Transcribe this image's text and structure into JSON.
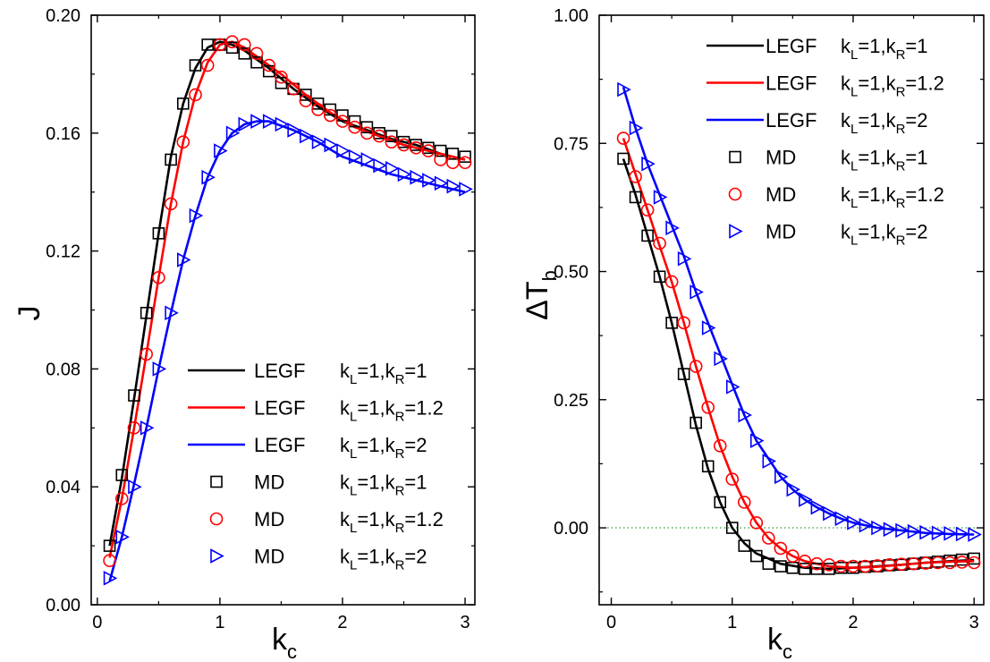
{
  "chart_data": [
    {
      "type": "line",
      "panel": "left",
      "xlabel": "k",
      "xlabel_sub": "c",
      "ylabel": "J",
      "xlim": [
        -0.05,
        3.08
      ],
      "ylim": [
        0.0,
        0.2
      ],
      "xticks": [
        "0",
        "1",
        "2",
        "3"
      ],
      "yticks": [
        "0.00",
        "0.04",
        "0.08",
        "0.12",
        "0.16",
        "0.20"
      ],
      "grid": false,
      "legend_position": "bottom-right",
      "series": [
        {
          "name": "LEGF k_L=1,k_R=1",
          "legend": {
            "method": "LEGF",
            "a": "1",
            "b": "1"
          },
          "style": "line",
          "color": "#000000",
          "x": [
            0.1,
            0.2,
            0.3,
            0.4,
            0.5,
            0.6,
            0.7,
            0.8,
            0.9,
            1.0,
            1.1,
            1.2,
            1.4,
            1.6,
            1.8,
            2.0,
            2.2,
            2.4,
            2.6,
            2.8,
            3.0
          ],
          "y": [
            0.02,
            0.043,
            0.07,
            0.098,
            0.126,
            0.152,
            0.17,
            0.182,
            0.189,
            0.191,
            0.19,
            0.188,
            0.182,
            0.175,
            0.169,
            0.164,
            0.161,
            0.158,
            0.156,
            0.153,
            0.151
          ]
        },
        {
          "name": "LEGF k_L=1,k_R=1.2",
          "legend": {
            "method": "LEGF",
            "a": "1",
            "b": "1.2"
          },
          "style": "line",
          "color": "#ff0000",
          "x": [
            0.1,
            0.2,
            0.3,
            0.4,
            0.5,
            0.6,
            0.7,
            0.8,
            0.9,
            1.0,
            1.1,
            1.2,
            1.3,
            1.5,
            1.7,
            1.9,
            2.1,
            2.3,
            2.5,
            2.7,
            3.0
          ],
          "y": [
            0.016,
            0.036,
            0.06,
            0.085,
            0.111,
            0.136,
            0.157,
            0.173,
            0.184,
            0.19,
            0.191,
            0.189,
            0.186,
            0.18,
            0.173,
            0.167,
            0.162,
            0.159,
            0.156,
            0.154,
            0.151
          ]
        },
        {
          "name": "LEGF k_L=1,k_R=2",
          "legend": {
            "method": "LEGF",
            "a": "1",
            "b": "2"
          },
          "style": "line",
          "color": "#0000ff",
          "x": [
            0.1,
            0.2,
            0.3,
            0.4,
            0.5,
            0.6,
            0.7,
            0.8,
            0.9,
            1.0,
            1.1,
            1.2,
            1.3,
            1.4,
            1.6,
            1.8,
            2.0,
            2.2,
            2.4,
            2.6,
            2.8,
            3.0
          ],
          "y": [
            0.008,
            0.023,
            0.041,
            0.06,
            0.08,
            0.099,
            0.117,
            0.132,
            0.145,
            0.154,
            0.16,
            0.163,
            0.164,
            0.164,
            0.161,
            0.157,
            0.152,
            0.149,
            0.146,
            0.144,
            0.142,
            0.14
          ]
        },
        {
          "name": "MD k_L=1,k_R=1",
          "legend": {
            "method": "MD",
            "a": "1",
            "b": "1"
          },
          "style": "marker",
          "marker": "square",
          "color": "#000000",
          "x": [
            0.1,
            0.2,
            0.3,
            0.4,
            0.5,
            0.6,
            0.7,
            0.8,
            0.9,
            1.0,
            1.1,
            1.2,
            1.3,
            1.4,
            1.5,
            1.6,
            1.7,
            1.8,
            1.9,
            2.0,
            2.1,
            2.2,
            2.3,
            2.4,
            2.5,
            2.6,
            2.7,
            2.8,
            2.9,
            3.0
          ],
          "y": [
            0.02,
            0.044,
            0.071,
            0.099,
            0.126,
            0.151,
            0.17,
            0.183,
            0.19,
            0.19,
            0.189,
            0.187,
            0.184,
            0.181,
            0.177,
            0.175,
            0.173,
            0.17,
            0.168,
            0.166,
            0.164,
            0.162,
            0.16,
            0.159,
            0.157,
            0.156,
            0.155,
            0.154,
            0.153,
            0.152
          ]
        },
        {
          "name": "MD k_L=1,k_R=1.2",
          "legend": {
            "method": "MD",
            "a": "1",
            "b": "1.2"
          },
          "style": "marker",
          "marker": "circle",
          "color": "#ff0000",
          "x": [
            0.1,
            0.2,
            0.3,
            0.4,
            0.5,
            0.6,
            0.7,
            0.8,
            0.9,
            1.0,
            1.1,
            1.2,
            1.3,
            1.4,
            1.5,
            1.6,
            1.7,
            1.8,
            1.9,
            2.0,
            2.1,
            2.2,
            2.3,
            2.4,
            2.5,
            2.6,
            2.7,
            2.8,
            2.9,
            3.0
          ],
          "y": [
            0.015,
            0.036,
            0.06,
            0.085,
            0.111,
            0.136,
            0.157,
            0.173,
            0.183,
            0.19,
            0.191,
            0.19,
            0.187,
            0.183,
            0.179,
            0.175,
            0.171,
            0.168,
            0.166,
            0.164,
            0.162,
            0.16,
            0.159,
            0.157,
            0.156,
            0.155,
            0.154,
            0.151,
            0.15,
            0.15
          ]
        },
        {
          "name": "MD k_L=1,k_R=2",
          "legend": {
            "method": "MD",
            "a": "1",
            "b": "2"
          },
          "style": "marker",
          "marker": "triangle-right",
          "color": "#0000ff",
          "x": [
            0.1,
            0.2,
            0.3,
            0.4,
            0.5,
            0.6,
            0.7,
            0.8,
            0.9,
            1.0,
            1.1,
            1.2,
            1.3,
            1.4,
            1.5,
            1.6,
            1.7,
            1.8,
            1.9,
            2.0,
            2.1,
            2.2,
            2.3,
            2.4,
            2.5,
            2.6,
            2.7,
            2.8,
            2.9,
            3.0
          ],
          "y": [
            0.009,
            0.023,
            0.04,
            0.06,
            0.08,
            0.099,
            0.117,
            0.132,
            0.145,
            0.154,
            0.16,
            0.163,
            0.164,
            0.164,
            0.163,
            0.161,
            0.159,
            0.157,
            0.156,
            0.154,
            0.152,
            0.151,
            0.149,
            0.148,
            0.146,
            0.145,
            0.144,
            0.143,
            0.142,
            0.141
          ]
        }
      ]
    },
    {
      "type": "line",
      "panel": "right",
      "xlabel": "k",
      "xlabel_sub": "c",
      "ylabel": "ΔT",
      "ylabel_sub": "b",
      "xlim": [
        -0.1,
        3.08
      ],
      "ylim": [
        -0.15,
        1.0
      ],
      "xticks": [
        "0",
        "1",
        "2",
        "3"
      ],
      "yticks": [
        "0.00",
        "0.25",
        "0.50",
        "0.75",
        "1.00"
      ],
      "grid": false,
      "reference_line": {
        "y": 0.0,
        "style": "dotted",
        "color": "#008000"
      },
      "legend_position": "top-right",
      "series": [
        {
          "name": "LEGF k_L=1,k_R=1",
          "legend": {
            "method": "LEGF",
            "a": "1",
            "b": "1"
          },
          "style": "line",
          "color": "#000000",
          "x": [
            0.1,
            0.2,
            0.3,
            0.4,
            0.5,
            0.6,
            0.7,
            0.8,
            0.9,
            1.0,
            1.1,
            1.2,
            1.4,
            1.6,
            1.8,
            2.0,
            2.2,
            2.4,
            2.6,
            2.8,
            3.0
          ],
          "y": [
            0.72,
            0.65,
            0.57,
            0.49,
            0.4,
            0.3,
            0.2,
            0.115,
            0.05,
            0.0,
            -0.03,
            -0.05,
            -0.07,
            -0.078,
            -0.08,
            -0.078,
            -0.075,
            -0.072,
            -0.068,
            -0.065,
            -0.063
          ]
        },
        {
          "name": "LEGF k_L=1,k_R=1.2",
          "legend": {
            "method": "LEGF",
            "a": "1",
            "b": "1.2"
          },
          "style": "line",
          "color": "#ff0000",
          "x": [
            0.1,
            0.2,
            0.3,
            0.4,
            0.5,
            0.6,
            0.7,
            0.8,
            0.9,
            1.0,
            1.1,
            1.2,
            1.3,
            1.4,
            1.5,
            1.6,
            1.8,
            2.0,
            2.2,
            2.4,
            2.6,
            2.8,
            3.0
          ],
          "y": [
            0.76,
            0.69,
            0.62,
            0.55,
            0.48,
            0.4,
            0.315,
            0.235,
            0.16,
            0.1,
            0.05,
            0.01,
            -0.02,
            -0.04,
            -0.055,
            -0.065,
            -0.075,
            -0.078,
            -0.076,
            -0.072,
            -0.068,
            -0.066,
            -0.065
          ]
        },
        {
          "name": "LEGF k_L=1,k_R=2",
          "legend": {
            "method": "LEGF",
            "a": "1",
            "b": "2"
          },
          "style": "line",
          "color": "#0000ff",
          "x": [
            0.1,
            0.2,
            0.3,
            0.4,
            0.5,
            0.6,
            0.7,
            0.8,
            0.9,
            1.0,
            1.1,
            1.2,
            1.3,
            1.4,
            1.5,
            1.6,
            1.7,
            1.8,
            1.9,
            2.0,
            2.2,
            2.4,
            2.6,
            2.8,
            3.0
          ],
          "y": [
            0.86,
            0.78,
            0.71,
            0.65,
            0.59,
            0.53,
            0.46,
            0.4,
            0.34,
            0.28,
            0.22,
            0.17,
            0.135,
            0.1,
            0.075,
            0.055,
            0.04,
            0.028,
            0.018,
            0.01,
            0.0,
            -0.005,
            -0.01,
            -0.012,
            -0.013
          ]
        },
        {
          "name": "MD k_L=1,k_R=1",
          "legend": {
            "method": "MD",
            "a": "1",
            "b": "1"
          },
          "style": "marker",
          "marker": "square",
          "color": "#000000",
          "x": [
            0.1,
            0.2,
            0.3,
            0.4,
            0.5,
            0.6,
            0.7,
            0.8,
            0.9,
            1.0,
            1.1,
            1.2,
            1.3,
            1.4,
            1.5,
            1.6,
            1.7,
            1.8,
            1.9,
            2.0,
            2.1,
            2.2,
            2.3,
            2.4,
            2.5,
            2.6,
            2.7,
            2.8,
            2.9,
            3.0
          ],
          "y": [
            0.72,
            0.645,
            0.57,
            0.49,
            0.4,
            0.3,
            0.205,
            0.12,
            0.05,
            0.0,
            -0.035,
            -0.055,
            -0.07,
            -0.075,
            -0.078,
            -0.08,
            -0.08,
            -0.08,
            -0.078,
            -0.078,
            -0.076,
            -0.075,
            -0.073,
            -0.072,
            -0.07,
            -0.068,
            -0.066,
            -0.064,
            -0.062,
            -0.06
          ]
        },
        {
          "name": "MD k_L=1,k_R=1.2",
          "legend": {
            "method": "MD",
            "a": "1",
            "b": "1.2"
          },
          "style": "marker",
          "marker": "circle",
          "color": "#ff0000",
          "x": [
            0.1,
            0.2,
            0.3,
            0.4,
            0.5,
            0.6,
            0.7,
            0.8,
            0.9,
            1.0,
            1.1,
            1.2,
            1.3,
            1.4,
            1.5,
            1.6,
            1.7,
            1.8,
            1.9,
            2.0,
            2.1,
            2.2,
            2.3,
            2.4,
            2.5,
            2.6,
            2.7,
            2.8,
            2.9,
            3.0
          ],
          "y": [
            0.76,
            0.685,
            0.62,
            0.555,
            0.48,
            0.4,
            0.315,
            0.235,
            0.16,
            0.095,
            0.05,
            0.01,
            -0.02,
            -0.04,
            -0.055,
            -0.065,
            -0.07,
            -0.072,
            -0.075,
            -0.075,
            -0.075,
            -0.074,
            -0.072,
            -0.071,
            -0.07,
            -0.069,
            -0.068,
            -0.068,
            -0.067,
            -0.068
          ]
        },
        {
          "name": "MD k_L=1,k_R=2",
          "legend": {
            "method": "MD",
            "a": "1",
            "b": "2"
          },
          "style": "marker",
          "marker": "triangle-right",
          "color": "#0000ff",
          "x": [
            0.1,
            0.2,
            0.3,
            0.4,
            0.5,
            0.6,
            0.7,
            0.8,
            0.9,
            1.0,
            1.1,
            1.2,
            1.3,
            1.4,
            1.5,
            1.6,
            1.7,
            1.8,
            1.9,
            2.0,
            2.1,
            2.2,
            2.3,
            2.4,
            2.5,
            2.6,
            2.7,
            2.8,
            2.9,
            3.0
          ],
          "y": [
            0.855,
            0.78,
            0.71,
            0.645,
            0.585,
            0.525,
            0.46,
            0.39,
            0.33,
            0.275,
            0.22,
            0.17,
            0.13,
            0.1,
            0.075,
            0.055,
            0.04,
            0.028,
            0.018,
            0.01,
            0.005,
            0.0,
            -0.003,
            -0.005,
            -0.007,
            -0.009,
            -0.01,
            -0.011,
            -0.012,
            -0.013
          ]
        }
      ]
    }
  ]
}
